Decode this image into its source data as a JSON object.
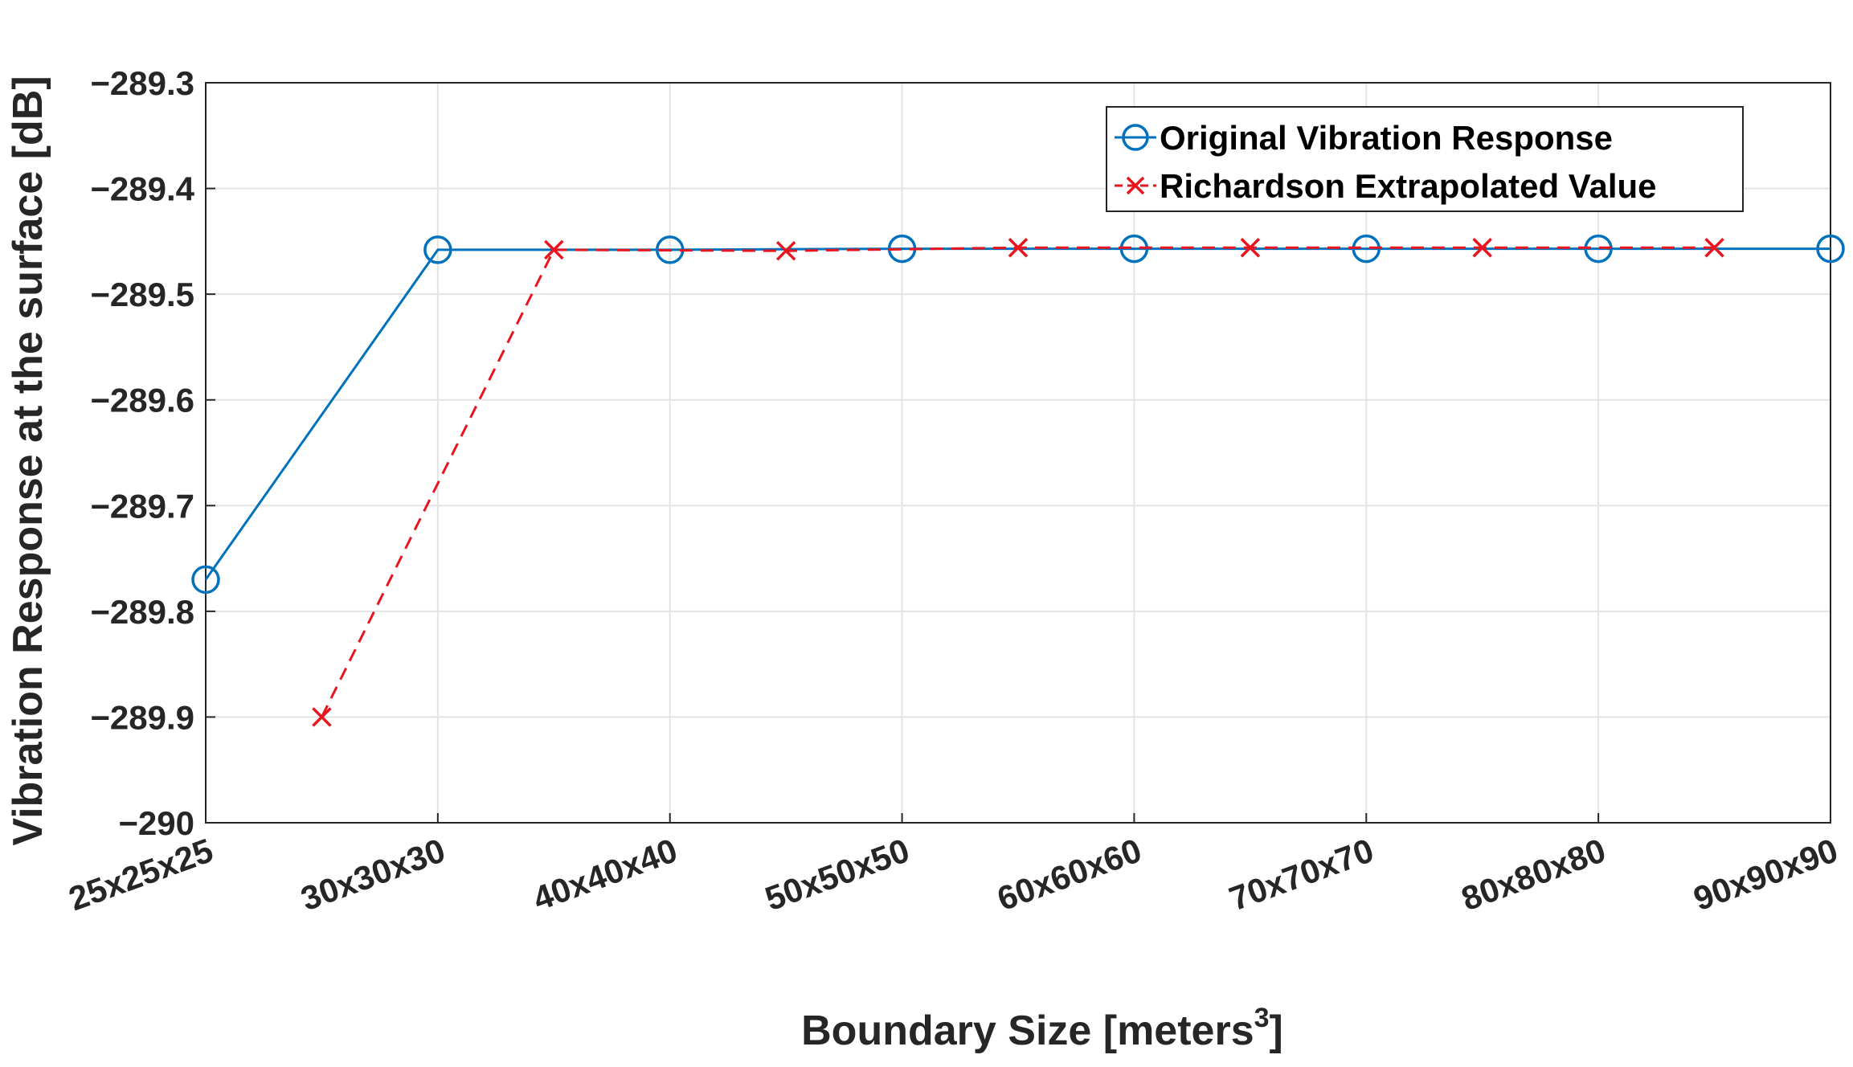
{
  "chart_data": {
    "type": "line",
    "xlabel_main": "Boundary Size [meters",
    "xlabel_sup": "3",
    "xlabel_end": "]",
    "ylabel": "Vibration Response at the surface [dB]",
    "xtick_labels": [
      "25x25x25",
      "30x30x30",
      "40x40x40",
      "50x50x50",
      "60x60x60",
      "70x70x70",
      "80x80x80",
      "90x90x90"
    ],
    "yticks": [
      -289.3,
      -289.4,
      -289.5,
      -289.6,
      -289.7,
      -289.8,
      -289.9,
      -290
    ],
    "ytick_labels": [
      "−289.3",
      "−289.4",
      "−289.5",
      "−289.6",
      "−289.7",
      "−289.8",
      "−289.9",
      "−290"
    ],
    "ylim": [
      -290,
      -289.3
    ],
    "xlim": [
      0,
      7
    ],
    "grid": true,
    "legend_position": "top-right",
    "series": [
      {
        "name": "Original Vibration Response",
        "color": "#0072BD",
        "marker": "circle",
        "line": "solid",
        "x": [
          0,
          1,
          2,
          3,
          4,
          5,
          6,
          7
        ],
        "values": [
          -289.77,
          -289.458,
          -289.458,
          -289.457,
          -289.457,
          -289.457,
          -289.457,
          -289.457
        ]
      },
      {
        "name": "Richardson Extrapolated Value",
        "color": "#E8141E",
        "marker": "x",
        "line": "dashed",
        "x": [
          0.5,
          1.5,
          2.5,
          3.5,
          4.5,
          5.5,
          6.5
        ],
        "values": [
          -289.9,
          -289.458,
          -289.459,
          -289.456,
          -289.456,
          -289.456,
          -289.456
        ]
      }
    ]
  }
}
